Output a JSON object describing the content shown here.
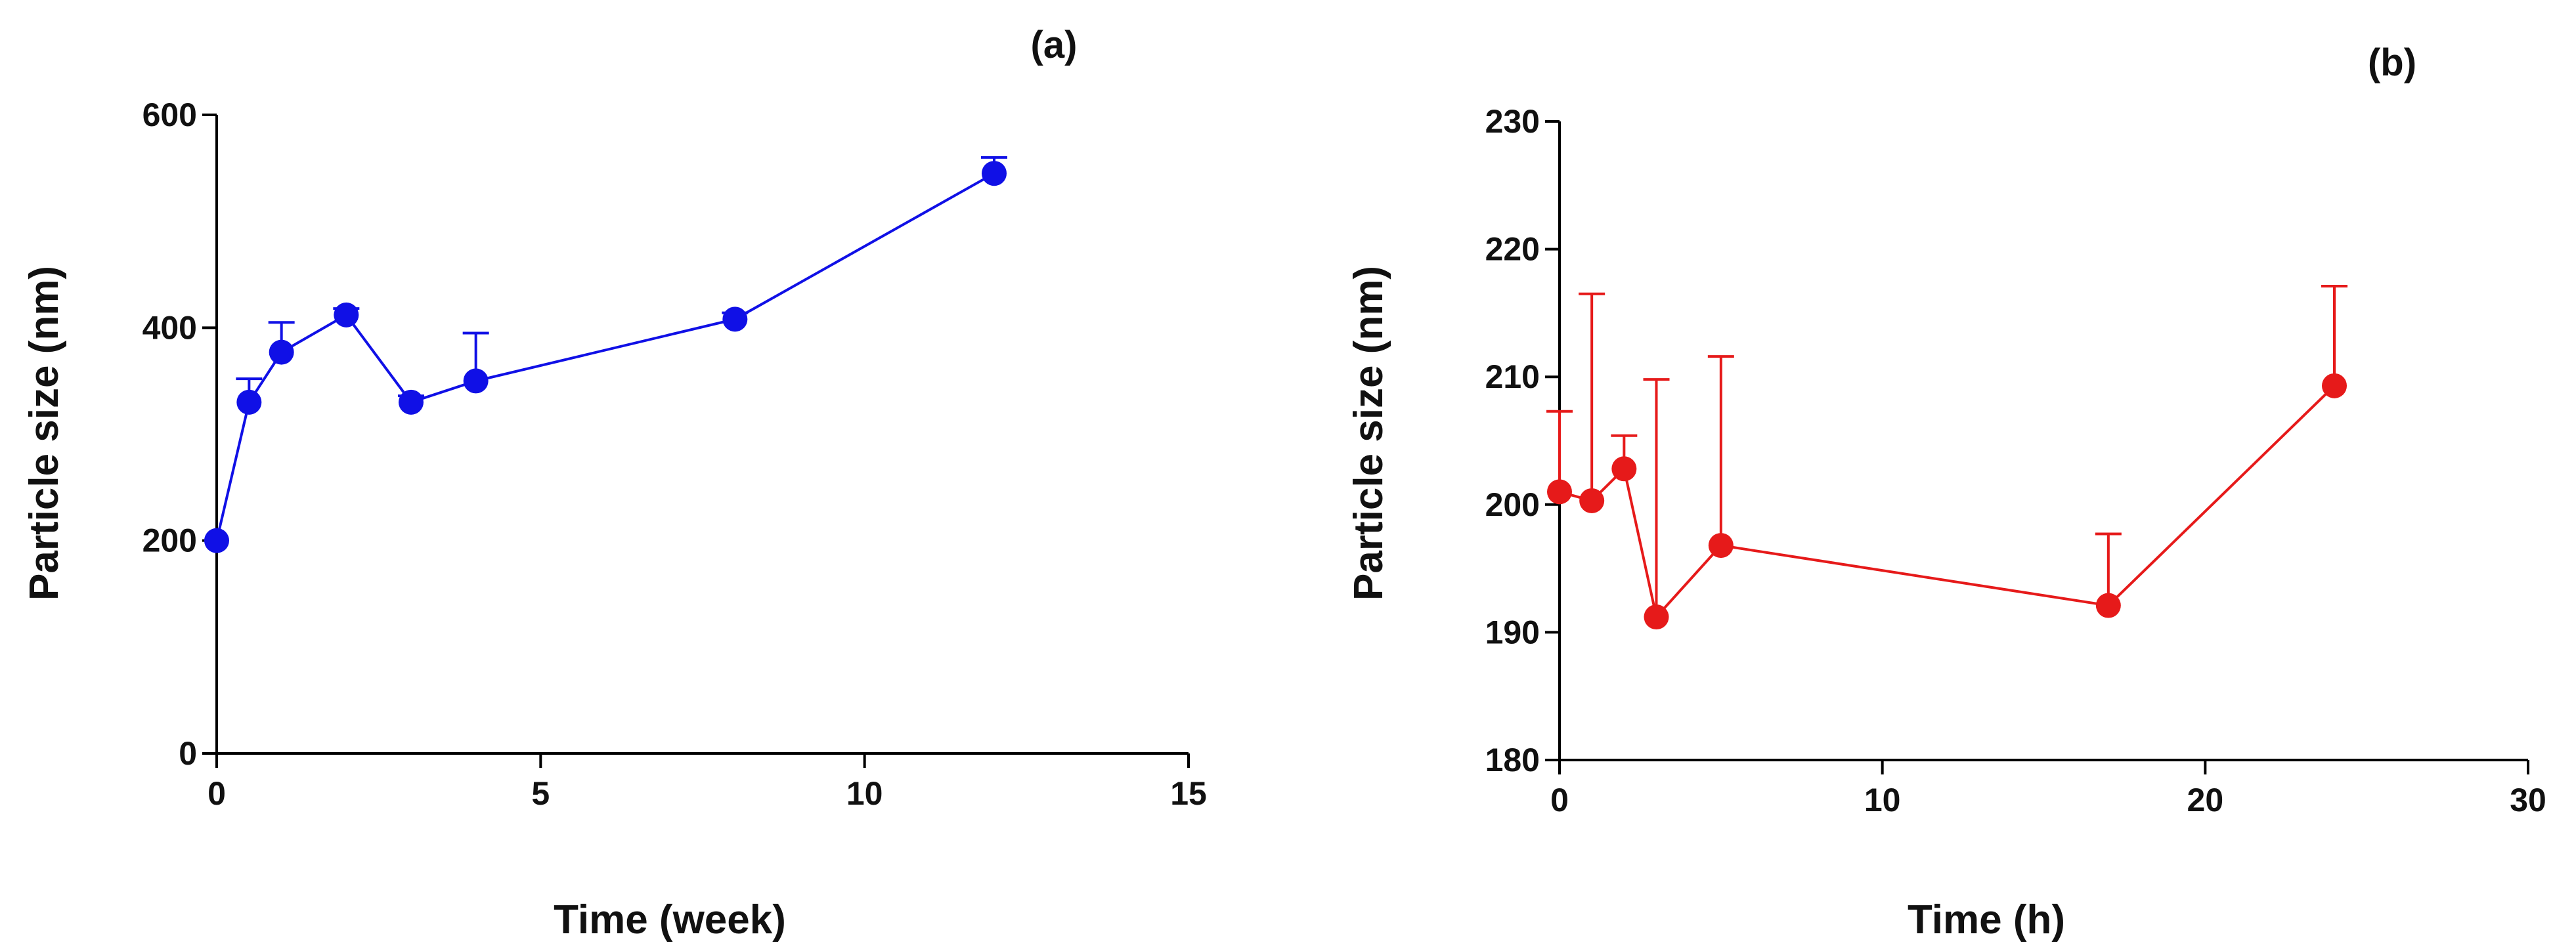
{
  "chart_data": [
    {
      "type": "line",
      "title": "(a)",
      "xlabel": "Time (week)",
      "ylabel": "Particle size (nm)",
      "xlim": [
        0,
        15
      ],
      "ylim": [
        0,
        600
      ],
      "xticks": [
        0,
        5,
        10,
        15
      ],
      "yticks": [
        0,
        200,
        400,
        600
      ],
      "grid": false,
      "color": "#1010e6",
      "series": [
        {
          "name": "Particle size",
          "x": [
            0,
            0.5,
            1,
            2,
            3,
            4,
            8,
            12
          ],
          "y": [
            200,
            330,
            377,
            412,
            330,
            350,
            408,
            545
          ],
          "error_up": [
            0,
            22,
            28,
            6,
            6,
            45,
            6,
            15
          ]
        }
      ]
    },
    {
      "type": "line",
      "title": "(b)",
      "xlabel": "Time (h)",
      "ylabel": "Particle size (nm)",
      "xlim": [
        0,
        30
      ],
      "ylim": [
        180,
        230
      ],
      "xticks": [
        0,
        10,
        20,
        30
      ],
      "yticks": [
        180,
        190,
        200,
        210,
        220,
        230
      ],
      "grid": false,
      "color": "#e61a1a",
      "series": [
        {
          "name": "Particle size",
          "x": [
            0,
            1,
            2,
            3,
            5,
            17,
            24
          ],
          "y": [
            201,
            200.3,
            202.8,
            191.2,
            196.8,
            192.1,
            209.3
          ],
          "error_up": [
            6.3,
            16.2,
            2.6,
            18.6,
            14.8,
            5.6,
            7.8
          ]
        }
      ]
    }
  ]
}
